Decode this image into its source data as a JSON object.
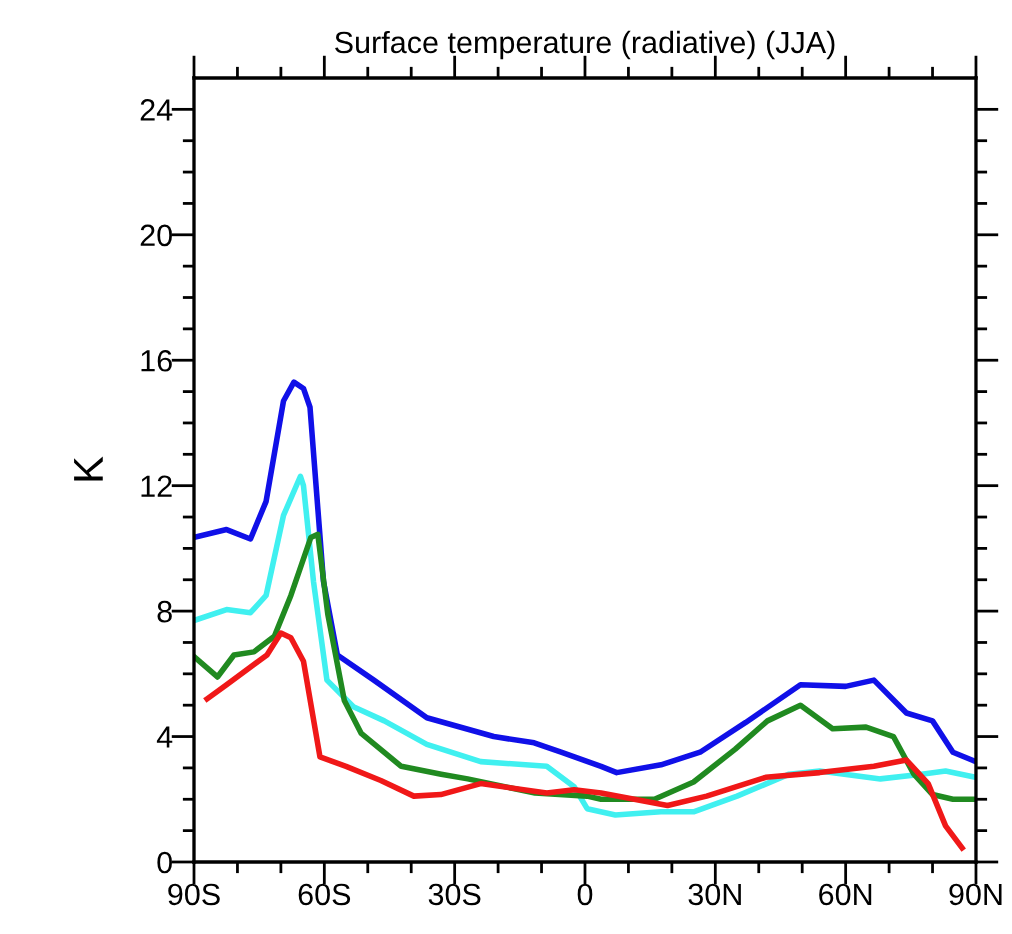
{
  "chart_data": {
    "type": "line",
    "title": "Surface temperature (radiative) (JJA)",
    "ylabel": "K",
    "xlim": [
      -90,
      90
    ],
    "ylim": [
      0,
      25
    ],
    "xticks": [
      {
        "value": -90,
        "label": "90S"
      },
      {
        "value": -80,
        "label": null
      },
      {
        "value": -70,
        "label": null
      },
      {
        "value": -60,
        "label": "60S"
      },
      {
        "value": -50,
        "label": null
      },
      {
        "value": -40,
        "label": null
      },
      {
        "value": -30,
        "label": "30S"
      },
      {
        "value": -20,
        "label": null
      },
      {
        "value": -10,
        "label": null
      },
      {
        "value": 0,
        "label": "0"
      },
      {
        "value": 10,
        "label": null
      },
      {
        "value": 20,
        "label": null
      },
      {
        "value": 30,
        "label": "30N"
      },
      {
        "value": 40,
        "label": null
      },
      {
        "value": 50,
        "label": null
      },
      {
        "value": 60,
        "label": "60N"
      },
      {
        "value": 70,
        "label": null
      },
      {
        "value": 80,
        "label": null
      },
      {
        "value": 90,
        "label": "90N"
      }
    ],
    "yticks": [
      0,
      {
        "value": 1,
        "label": null
      },
      {
        "value": 2,
        "label": null
      },
      {
        "value": 3,
        "label": null
      },
      4,
      {
        "value": 5,
        "label": null
      },
      {
        "value": 6,
        "label": null
      },
      {
        "value": 7,
        "label": null
      },
      8,
      {
        "value": 9,
        "label": null
      },
      {
        "value": 10,
        "label": null
      },
      {
        "value": 11,
        "label": null
      },
      12,
      {
        "value": 13,
        "label": null
      },
      {
        "value": 14,
        "label": null
      },
      {
        "value": 15,
        "label": null
      },
      16,
      {
        "value": 17,
        "label": null
      },
      {
        "value": 18,
        "label": null
      },
      {
        "value": 19,
        "label": null
      },
      20,
      {
        "value": 21,
        "label": null
      },
      {
        "value": 22,
        "label": null
      },
      {
        "value": 23,
        "label": null
      },
      24
    ],
    "grid": false,
    "marker": "none",
    "line_style": "solid",
    "series": [
      {
        "color": "#1010e8",
        "x": [
          -90,
          -82.5,
          -77,
          -73.4,
          -69.4,
          -67,
          -64.8,
          -63.3,
          -60.2,
          -57,
          -48.6,
          -36.4,
          -21,
          -11.7,
          -5.5,
          3.7,
          7.3,
          17.5,
          26.5,
          37,
          49.6,
          60,
          66.5,
          74,
          80,
          84.7,
          90
        ],
        "values": [
          10.35,
          10.6,
          10.3,
          11.5,
          14.7,
          15.3,
          15.1,
          14.5,
          8.95,
          6.6,
          5.8,
          4.6,
          4.0,
          3.8,
          3.5,
          3.05,
          2.85,
          3.1,
          3.5,
          4.45,
          5.65,
          5.6,
          5.8,
          4.75,
          4.5,
          3.5,
          3.2
        ]
      },
      {
        "color": "#40f0f0",
        "x": [
          -90,
          -82.5,
          -77,
          -73.4,
          -69.4,
          -65.5,
          -64.8,
          -62.5,
          -59.4,
          -53.3,
          -46.2,
          -36.4,
          -24,
          -8.8,
          -2.5,
          0.5,
          7,
          17.5,
          25,
          35,
          47,
          54,
          68,
          77.5,
          83,
          90
        ],
        "values": [
          7.7,
          8.05,
          7.95,
          8.5,
          11.05,
          12.3,
          12.0,
          8.95,
          5.8,
          4.95,
          4.5,
          3.75,
          3.2,
          3.05,
          2.4,
          1.7,
          1.5,
          1.6,
          1.6,
          2.1,
          2.8,
          2.9,
          2.65,
          2.8,
          2.9,
          2.7
        ]
      },
      {
        "color": "#208a20",
        "x": [
          -90,
          -84.6,
          -80.8,
          -76.2,
          -71.5,
          -67.7,
          -63.1,
          -61.5,
          -59.2,
          -55.4,
          -51.5,
          -42.3,
          -33.1,
          -27,
          -11.5,
          0.5,
          3.7,
          16,
          25,
          34.6,
          42,
          49.6,
          57,
          64.7,
          71,
          75.7,
          80,
          84.7,
          90
        ],
        "values": [
          6.55,
          5.9,
          6.6,
          6.7,
          7.2,
          8.5,
          10.35,
          10.45,
          7.9,
          5.15,
          4.1,
          3.05,
          2.8,
          2.65,
          2.2,
          2.1,
          2.0,
          2.0,
          2.55,
          3.6,
          4.5,
          5.0,
          4.25,
          4.3,
          4.0,
          2.8,
          2.15,
          2.0,
          2.0
        ]
      },
      {
        "color": "#f01818",
        "x": [
          -87,
          -82.5,
          -76.2,
          -73.2,
          -70,
          -67.7,
          -64.8,
          -61,
          -55,
          -47,
          -39.4,
          -33.2,
          -24,
          -8.8,
          -2.5,
          3.7,
          19,
          28,
          41.6,
          54,
          66.5,
          74,
          79,
          83,
          86.8
        ],
        "values": [
          5.2,
          5.65,
          6.3,
          6.6,
          7.3,
          7.15,
          6.4,
          3.35,
          3.05,
          2.6,
          2.1,
          2.15,
          2.5,
          2.2,
          2.3,
          2.2,
          1.8,
          2.1,
          2.7,
          2.85,
          3.05,
          3.25,
          2.5,
          1.15,
          0.45
        ]
      }
    ]
  }
}
